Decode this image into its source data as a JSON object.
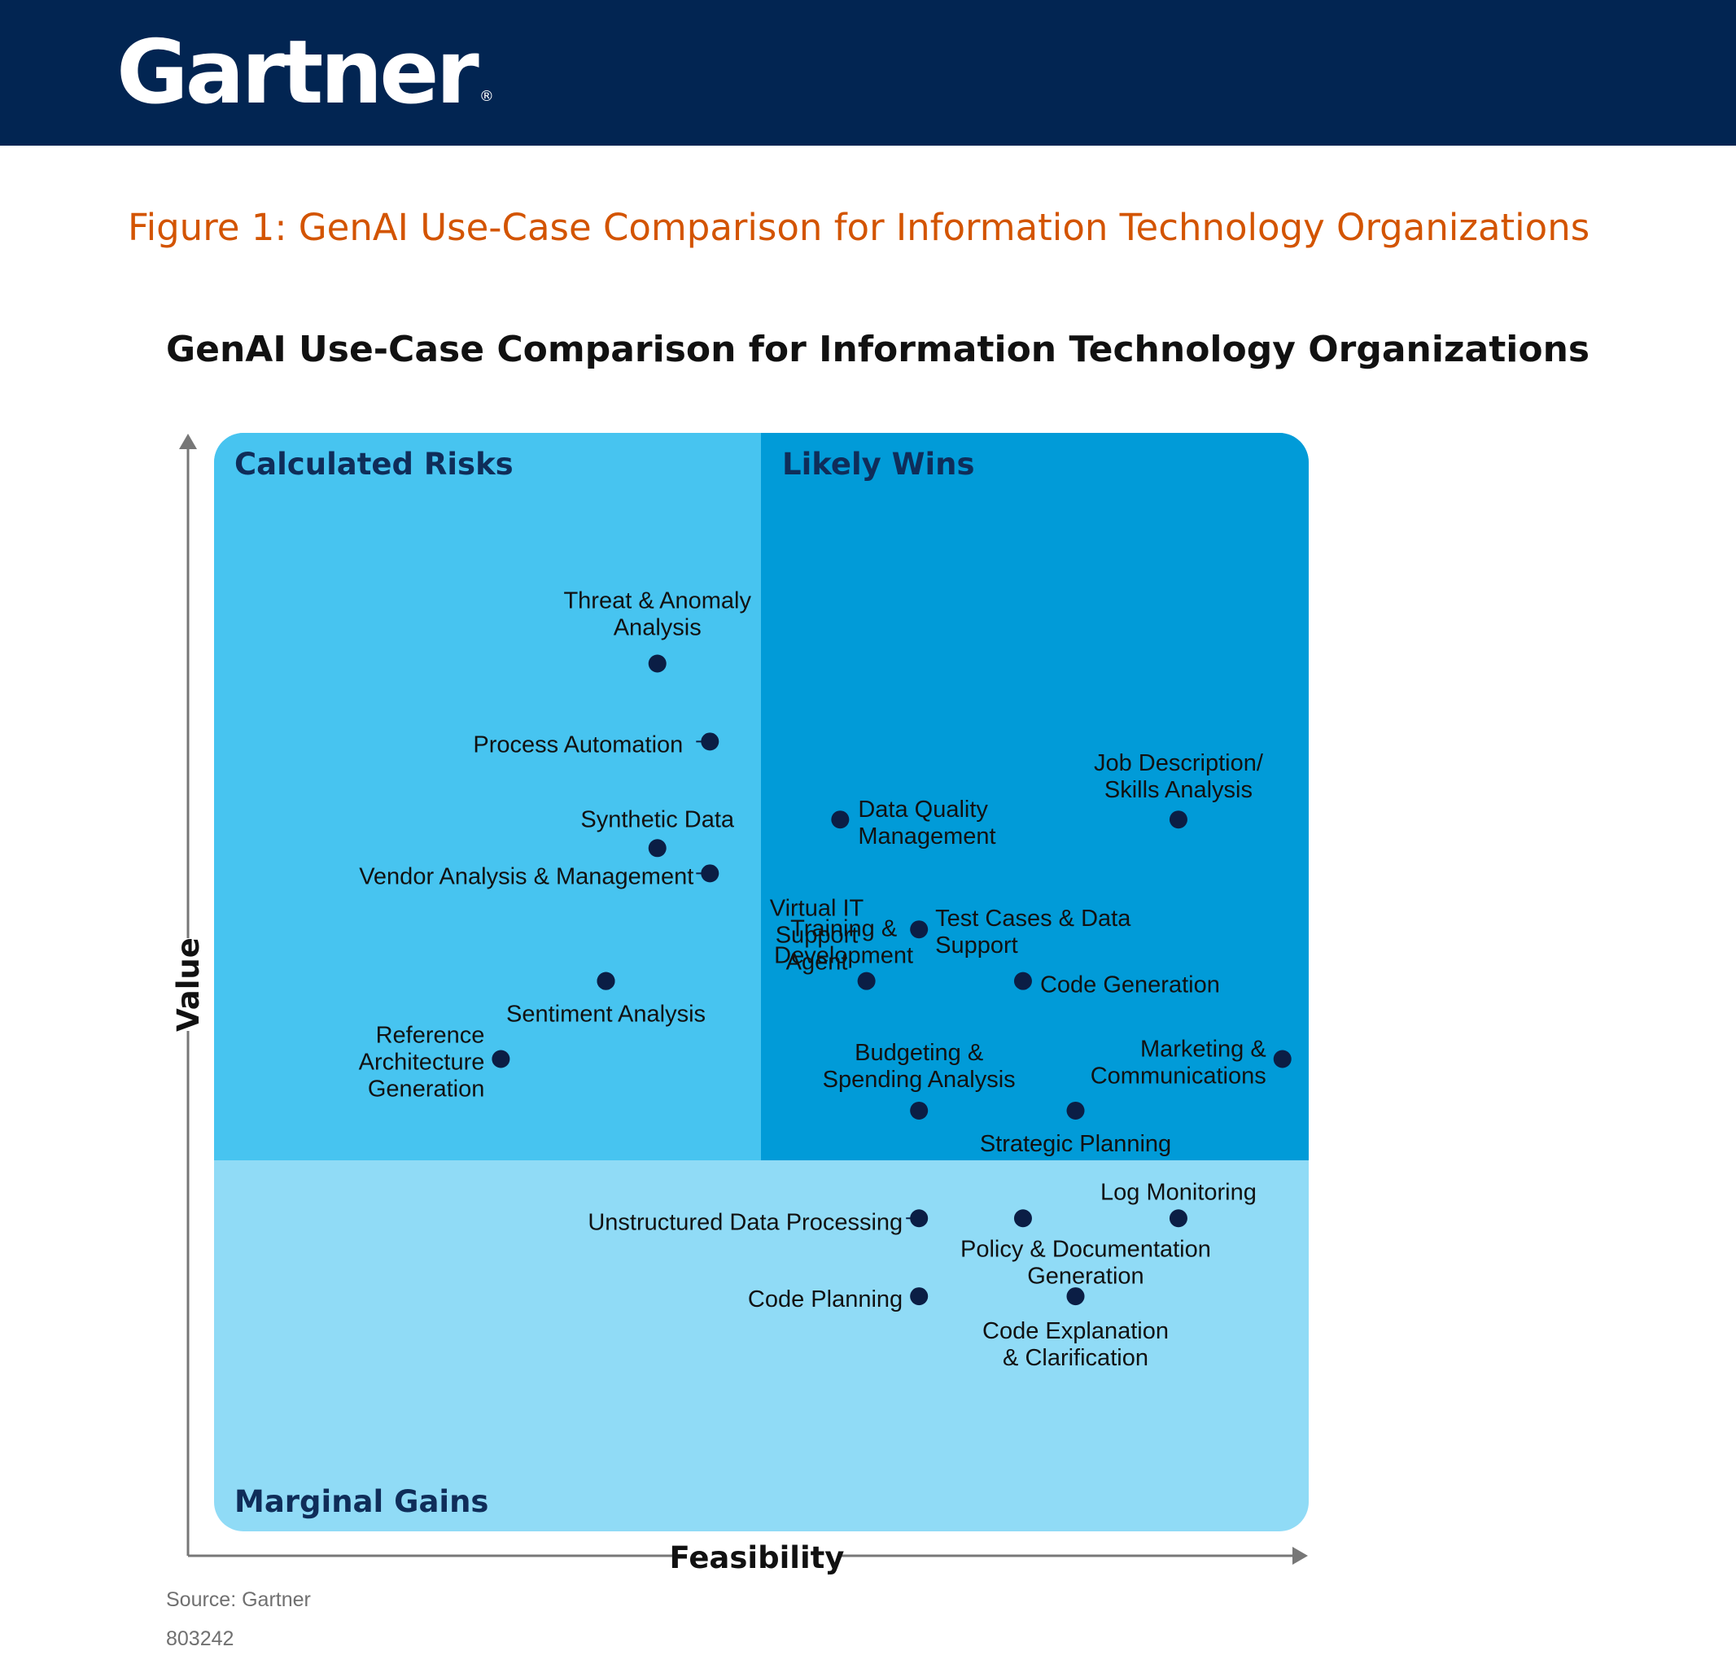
{
  "header": {
    "logo_text": "Gartner",
    "logo_mark": "®",
    "bg_color": "#022552"
  },
  "figure_caption": "Figure 1: GenAI Use-Case Comparison for Information Technology Organizations",
  "caption_color": "#d35400",
  "chart_data": {
    "type": "scatter",
    "title": "GenAI Use-Case Comparison for Information Technology Organizations",
    "xlabel": "Feasibility",
    "ylabel": "Value",
    "xlim": [
      0,
      100
    ],
    "ylim": [
      0,
      100
    ],
    "axis_ticks": false,
    "grid": false,
    "quadrants": [
      {
        "name": "Calculated Risks",
        "region": "top-left",
        "color": "#47c4f0"
      },
      {
        "name": "Likely Wins",
        "region": "top-right",
        "color": "#019bd8"
      },
      {
        "name": "Marginal Gains",
        "region": "bottom",
        "color": "#90dbf6"
      }
    ],
    "points": [
      {
        "label": "Threat & Anomaly Analysis",
        "x": 40.5,
        "y": 79.0
      },
      {
        "label": "Process Automation",
        "x": 45.3,
        "y": 71.9
      },
      {
        "label": "Synthetic Data",
        "x": 40.5,
        "y": 62.2
      },
      {
        "label": "Vendor Analysis & Management",
        "x": 45.3,
        "y": 59.9
      },
      {
        "label": "Virtual IT Support Agent",
        "x": 35.8,
        "y": 50.1
      },
      {
        "label": "Sentiment Analysis",
        "x": 35.8,
        "y": 50.1
      },
      {
        "label": "Reference Architecture Generation",
        "x": 26.2,
        "y": 43.0
      },
      {
        "label": "Data Quality Management",
        "x": 57.2,
        "y": 64.8
      },
      {
        "label": "Job Description/ Skills Analysis",
        "x": 88.1,
        "y": 64.8
      },
      {
        "label": "Training & Development",
        "x": 59.6,
        "y": 50.1
      },
      {
        "label": "Test Cases & Data Support",
        "x": 64.4,
        "y": 54.8
      },
      {
        "label": "Code Generation",
        "x": 73.9,
        "y": 50.1
      },
      {
        "label": "Marketing & Communications",
        "x": 97.6,
        "y": 43.0
      },
      {
        "label": "Budgeting & Spending Analysis",
        "x": 64.4,
        "y": 38.3
      },
      {
        "label": "Strategic Planning",
        "x": 78.7,
        "y": 38.3
      },
      {
        "label": "Log Monitoring",
        "x": 88.1,
        "y": 28.5
      },
      {
        "label": "Unstructured Data Processing",
        "x": 64.4,
        "y": 28.5
      },
      {
        "label": "Policy & Documentation Generation",
        "x": 73.9,
        "y": 28.5
      },
      {
        "label": "Code Planning",
        "x": 64.4,
        "y": 21.4
      },
      {
        "label": "Code Explanation & Clarification",
        "x": 78.7,
        "y": 21.4
      }
    ]
  },
  "source_text": "Source: Gartner",
  "figure_id": "803242"
}
